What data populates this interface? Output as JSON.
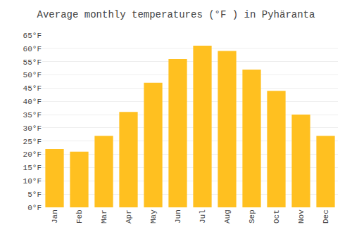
{
  "chart_data": {
    "type": "bar",
    "title": "Average monthly temperatures (°F ) in Pyhäranta",
    "categories": [
      "Jan",
      "Feb",
      "Mar",
      "Apr",
      "May",
      "Jun",
      "Jul",
      "Aug",
      "Sep",
      "Oct",
      "Nov",
      "Dec"
    ],
    "values": [
      22,
      21,
      27,
      36,
      47,
      56,
      61,
      59,
      52,
      44,
      35,
      27
    ],
    "color": "#FFC020",
    "ylim": [
      0,
      65
    ],
    "yticks": [
      {
        "value": 0,
        "label": "0°F"
      },
      {
        "value": 5,
        "label": "5°F"
      },
      {
        "value": 10,
        "label": "10°F"
      },
      {
        "value": 15,
        "label": "15°F"
      },
      {
        "value": 20,
        "label": "20°F"
      },
      {
        "value": 25,
        "label": "25°F"
      },
      {
        "value": 30,
        "label": "30°F"
      },
      {
        "value": 35,
        "label": "35°F"
      },
      {
        "value": 40,
        "label": "40°F"
      },
      {
        "value": 45,
        "label": "45°F"
      },
      {
        "value": 50,
        "label": "50°F"
      },
      {
        "value": 55,
        "label": "55°F"
      },
      {
        "value": 60,
        "label": "60°F"
      },
      {
        "value": 65,
        "label": "65°F"
      }
    ],
    "grid": true
  }
}
